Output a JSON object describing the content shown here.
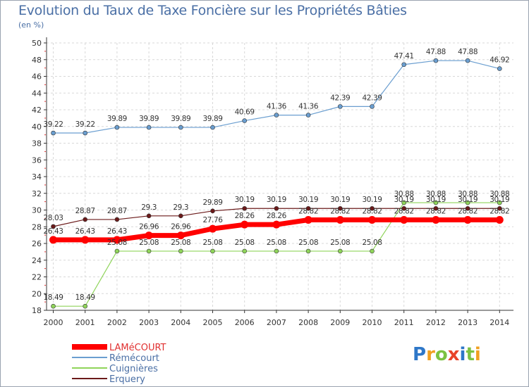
{
  "chart_data": {
    "type": "line",
    "title": "Evolution du Taux de Taxe Foncière sur les Propriétés Bâties",
    "unit_label": "(en %)",
    "x": [
      "2000",
      "2001",
      "2002",
      "2003",
      "2004",
      "2005",
      "2006",
      "2007",
      "2008",
      "2009",
      "2010",
      "2011",
      "2012",
      "2013",
      "2014"
    ],
    "ylim": [
      18,
      50
    ],
    "yticks": [
      18,
      20,
      22,
      24,
      26,
      28,
      30,
      32,
      34,
      36,
      38,
      40,
      42,
      44,
      46,
      48,
      50
    ],
    "grid": true,
    "legend_position": "bottom-left",
    "series": [
      {
        "name": "Erquery",
        "color": "#6b1a1a",
        "width": 1.2,
        "values": [
          28.03,
          28.87,
          28.87,
          29.3,
          29.3,
          29.89,
          30.19,
          30.19,
          30.19,
          30.19,
          30.19,
          30.19,
          30.19,
          30.19,
          30.19
        ],
        "labels": [
          "28.03",
          "28.87",
          "28.87",
          "29.3",
          "29.3",
          "29.89",
          "30.19",
          "30.19",
          "30.19",
          "30.19",
          "30.19",
          "30.19",
          "30.19",
          "30.19",
          "30.19"
        ]
      },
      {
        "name": "Rémécourt",
        "color": "#6a9ed0",
        "width": 1.2,
        "values": [
          39.22,
          39.22,
          39.89,
          39.89,
          39.89,
          39.89,
          40.69,
          41.36,
          41.36,
          42.39,
          42.39,
          47.41,
          47.88,
          47.88,
          46.92
        ],
        "labels": [
          "39.22",
          "39.22",
          "39.89",
          "39.89",
          "39.89",
          "39.89",
          "40.69",
          "41.36",
          "41.36",
          "42.39",
          "42.39",
          "47.41",
          "47.88",
          "47.88",
          "46.92"
        ]
      },
      {
        "name": "Cuignières",
        "color": "#8fd45a",
        "width": 1.2,
        "values": [
          18.49,
          18.49,
          25.08,
          25.08,
          25.08,
          25.08,
          25.08,
          25.08,
          25.08,
          25.08,
          25.08,
          30.88,
          30.88,
          30.88,
          30.88
        ],
        "labels": [
          "18.49",
          "18.49",
          "25.08",
          "25.08",
          "25.08",
          "25.08",
          "25.08",
          "25.08",
          "25.08",
          "25.08",
          "25.08",
          "30.88",
          "30.88",
          "30.88",
          "30.88"
        ]
      },
      {
        "name": "LAMéCOURT",
        "color": "#ff0000",
        "width": 7,
        "values": [
          26.43,
          26.43,
          26.43,
          26.96,
          26.96,
          27.76,
          28.26,
          28.26,
          28.82,
          28.82,
          28.82,
          28.82,
          28.82,
          28.82,
          28.82
        ],
        "labels": [
          "26.43",
          "26.43",
          "26.43",
          "26.96",
          "26.96",
          "27.76",
          "28.26",
          "28.26",
          "28.82",
          "28.82",
          "28.82",
          "28.82",
          "28.82",
          "28.82",
          "28.82"
        ]
      }
    ],
    "legend_order": [
      "LAMéCOURT",
      "Rémécourt",
      "Cuignières",
      "Erquery"
    ]
  },
  "logo": {
    "text": [
      "P",
      "r",
      "o",
      "x",
      "i",
      "t",
      "i"
    ],
    "colors": [
      "#2e77c8",
      "#f0a020",
      "#7cc242",
      "#e8442a",
      "#2e77c8",
      "#7cc242",
      "#f0a020"
    ]
  }
}
